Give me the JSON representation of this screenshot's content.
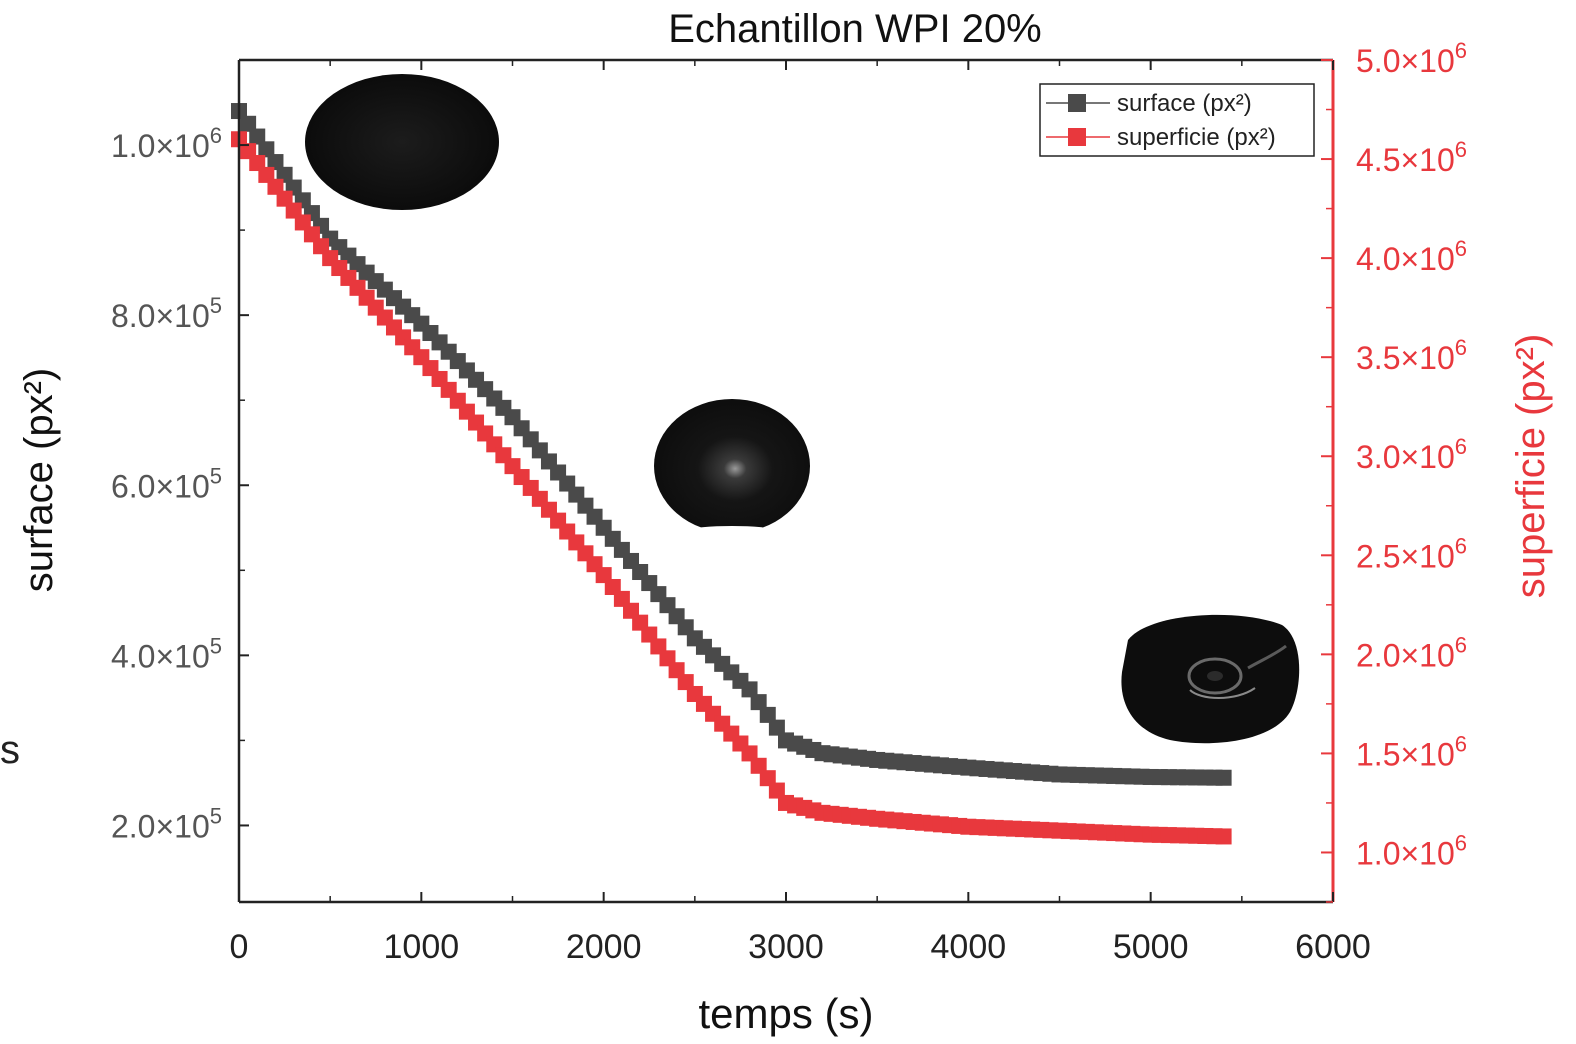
{
  "colors": {
    "primary": "#4a4a4a",
    "secondary": "#e8383d",
    "axis": "#222222",
    "left_tick_text": "#555555"
  },
  "stray_text": "s",
  "chart_data": {
    "type": "line",
    "title": "Echantillon WPI 20%",
    "xlabel": "temps (s)",
    "ylabel_left": "surface (px²)",
    "ylabel_right": "superficie (px²)",
    "xlim": [
      0,
      6000
    ],
    "ylim_left": [
      110000,
      1100000
    ],
    "ylim_right": [
      750000,
      5000000
    ],
    "x_ticks": [
      "0",
      "1000",
      "2000",
      "3000",
      "4000",
      "5000",
      "6000"
    ],
    "x_tick_values": [
      0,
      1000,
      2000,
      3000,
      4000,
      5000,
      6000
    ],
    "left_ticks": [
      {
        "value": 200000,
        "mant": "2.0×10",
        "exp": "5"
      },
      {
        "value": 400000,
        "mant": "4.0×10",
        "exp": "5"
      },
      {
        "value": 600000,
        "mant": "6.0×10",
        "exp": "5"
      },
      {
        "value": 800000,
        "mant": "8.0×10",
        "exp": "5"
      },
      {
        "value": 1000000,
        "mant": "1.0×10",
        "exp": "6"
      }
    ],
    "right_ticks": [
      {
        "value": 1000000,
        "mant": "1.0×10",
        "exp": "6"
      },
      {
        "value": 1500000,
        "mant": "1.5×10",
        "exp": "6"
      },
      {
        "value": 2000000,
        "mant": "2.0×10",
        "exp": "6"
      },
      {
        "value": 2500000,
        "mant": "2.5×10",
        "exp": "6"
      },
      {
        "value": 3000000,
        "mant": "3.0×10",
        "exp": "6"
      },
      {
        "value": 3500000,
        "mant": "3.5×10",
        "exp": "6"
      },
      {
        "value": 4000000,
        "mant": "4.0×10",
        "exp": "6"
      },
      {
        "value": 4500000,
        "mant": "4.5×10",
        "exp": "6"
      },
      {
        "value": 5000000,
        "mant": "5.0×10",
        "exp": "6"
      }
    ],
    "legend_position": "top-right",
    "series": [
      {
        "name": "surface (px²)",
        "axis": "left",
        "color": "#4a4a4a",
        "marker": "square",
        "x": [
          0,
          500,
          1000,
          1500,
          2000,
          2500,
          2800,
          3000,
          3200,
          3500,
          4000,
          4500,
          5000,
          5440
        ],
        "y": [
          1040000,
          890000,
          790000,
          680000,
          550000,
          420000,
          360000,
          300000,
          285000,
          277000,
          268000,
          260000,
          257000,
          256000
        ]
      },
      {
        "name": "superficie (px²)",
        "axis": "right",
        "color": "#e8383d",
        "marker": "square",
        "x": [
          0,
          500,
          1000,
          1500,
          2000,
          2500,
          2800,
          3000,
          3200,
          3500,
          4000,
          4500,
          5000,
          5440
        ],
        "y": [
          4600000,
          4000000,
          3500000,
          2950000,
          2400000,
          1800000,
          1500000,
          1250000,
          1200000,
          1170000,
          1130000,
          1110000,
          1090000,
          1080000
        ]
      }
    ]
  }
}
